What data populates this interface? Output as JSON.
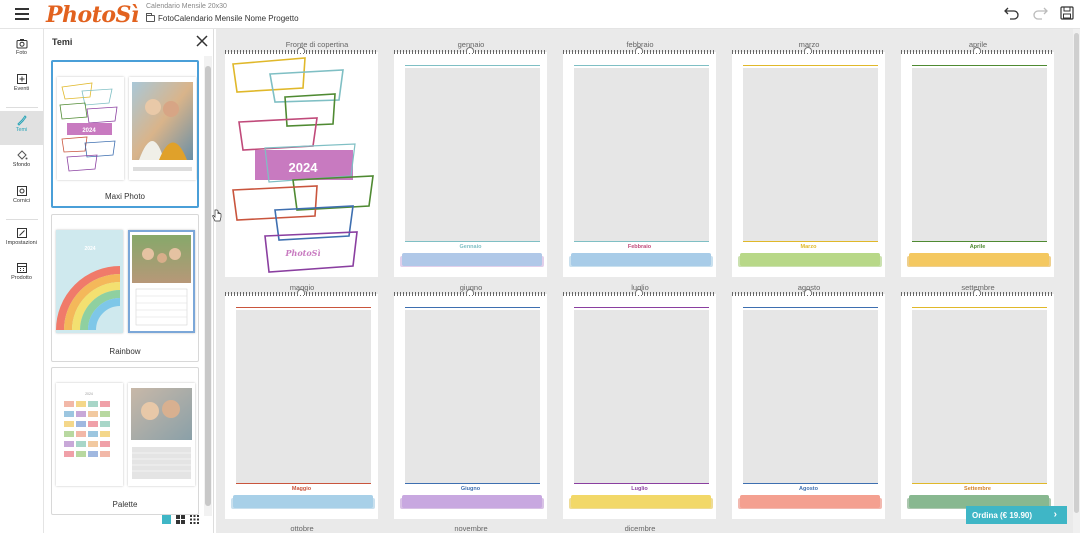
{
  "header": {
    "logo": "PhotoSì",
    "project_type": "Calendario Mensile 20x30",
    "project_name": "FotoCalendario Mensile Nome Progetto"
  },
  "rail": [
    {
      "label": "Foto",
      "icon": "camera-icon"
    },
    {
      "label": "Eventi",
      "icon": "calendar-plus-icon"
    },
    {
      "label": "Temi",
      "icon": "brush-icon",
      "active": true
    },
    {
      "label": "Sfondo",
      "icon": "paint-bucket-icon"
    },
    {
      "label": "Cornici",
      "icon": "frame-icon"
    },
    {
      "label": "Impostazioni",
      "icon": "settings-icon"
    },
    {
      "label": "Prodotto",
      "icon": "product-icon"
    }
  ],
  "themes_panel": {
    "title": "Temi",
    "themes": [
      {
        "label": "Maxi Photo",
        "selected": true
      },
      {
        "label": "Rainbow"
      },
      {
        "label": "Palette"
      }
    ]
  },
  "pages": [
    {
      "label": "Fronte di copertina",
      "cover_year": "2024",
      "brand": "PhotoSì"
    },
    {
      "label": "gennaio",
      "month": "Gennaio",
      "color": "#7fbfc4"
    },
    {
      "label": "febbraio",
      "month": "Febbraio",
      "color": "#c04a7a"
    },
    {
      "label": "marzo",
      "month": "Marzo",
      "color": "#e0b82a"
    },
    {
      "label": "aprile",
      "month": "Aprile",
      "color": "#4f8a32"
    },
    {
      "label": "maggio",
      "month": "Maggio",
      "color": "#c9553d"
    },
    {
      "label": "giugno",
      "month": "Giugno",
      "color": "#3e6fb0"
    },
    {
      "label": "luglio",
      "month": "Luglio",
      "color": "#8a3fa0"
    },
    {
      "label": "agosto",
      "month": "Agosto",
      "color": "#3e6fb0"
    },
    {
      "label": "settembre",
      "month": "Settembre",
      "color": "#d2822a"
    },
    {
      "label": "ottobre"
    },
    {
      "label": "novembre"
    },
    {
      "label": "dicembre"
    }
  ],
  "order_button": "Ordina (€ 19.90)"
}
